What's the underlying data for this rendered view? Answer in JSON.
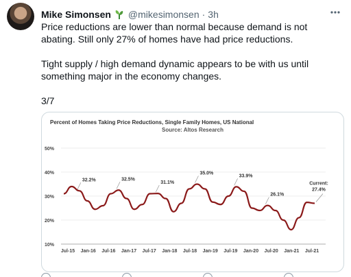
{
  "tweet": {
    "author_name": "Mike Simonsen",
    "handle": "@mikesimonsen",
    "separator": "·",
    "time": "3h",
    "body_line1": "Price reductions are lower than normal because demand is not abating. Still only 27% of homes have had price reductions.",
    "body_line2": "Tight supply / high demand dynamic appears to be with us  until something major in the economy changes.",
    "thread_count": "3/7",
    "icons": {
      "verified_emoji": "sprout-emoji-icon",
      "more": "more-options-icon"
    }
  },
  "chart_data": {
    "type": "line",
    "title": "Percent of Homes Taking Price Reductions, Single Family Homes, US National",
    "subtitle": "Source: Altos Research",
    "ylim": [
      10,
      50
    ],
    "y_ticks": [
      "50%",
      "40%",
      "30%",
      "20%",
      "10%"
    ],
    "y_tick_values": [
      50,
      40,
      30,
      20,
      10
    ],
    "x_ticks": [
      "Jul-15",
      "Jan-16",
      "Jul-16",
      "Jan-17",
      "Jul-17",
      "Jan-18",
      "Jul-18",
      "Jan-19",
      "Jul-19",
      "Jan-20",
      "Jul-20",
      "Jan-21",
      "Jul-21"
    ],
    "series": [
      {
        "color": "#8b1a1a",
        "values": [
          31.0,
          34.0,
          32.2,
          28.0,
          24.5,
          26.0,
          31.0,
          32.5,
          29.0,
          24.5,
          26.5,
          31.0,
          31.1,
          29.0,
          23.5,
          27.0,
          33.0,
          35.0,
          33.0,
          27.5,
          26.5,
          30.0,
          33.9,
          32.0,
          25.0,
          24.0,
          26.1,
          24.0,
          20.0,
          16.0,
          21.0,
          27.4,
          27.0
        ]
      }
    ],
    "annotations": [
      {
        "label": "32.2%",
        "x_index": 2
      },
      {
        "label": "32.5%",
        "x_index": 7
      },
      {
        "label": "31.1%",
        "x_index": 12
      },
      {
        "label": "35.0%",
        "x_index": 17
      },
      {
        "label": "33.9%",
        "x_index": 22
      },
      {
        "label": "26.1%",
        "x_index": 26
      }
    ],
    "current_label_line1": "Current:",
    "current_label_line2": "27.4%",
    "grid": true,
    "legend": "none"
  }
}
